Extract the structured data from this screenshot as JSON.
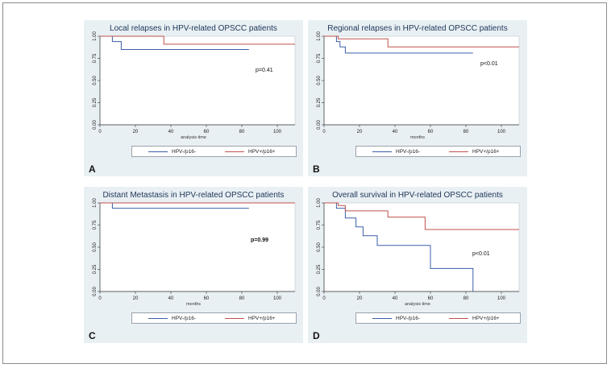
{
  "colors": {
    "hpv_neg": "#3b5fa8",
    "hpv_pos": "#c0504d",
    "panel_bg": "#e9f0f4",
    "plot_bg": "#ffffff"
  },
  "legend": {
    "series1": "HPV-/p16-",
    "series2": "HPV+/p16+"
  },
  "chart_data": [
    {
      "type": "line",
      "step": true,
      "panel_label": "A",
      "title": "Local relapses in HPV-related OPSCC patients",
      "xlabel": "analysis time",
      "ylabel": "",
      "xlim": [
        0,
        110
      ],
      "ylim": [
        0,
        1
      ],
      "xticks": [
        "0",
        "20",
        "40",
        "60",
        "80",
        "100"
      ],
      "yticks": [
        "0.00",
        "0.25",
        "0.50",
        "0.75",
        "1.00"
      ],
      "annotation": "p=0.41",
      "annotation_bold": false,
      "series": [
        {
          "name": "HPV-/p16-",
          "color_key": "hpv_neg",
          "x": [
            0,
            7,
            7,
            12,
            12,
            84
          ],
          "y": [
            1.0,
            1.0,
            0.94,
            0.94,
            0.85,
            0.85
          ]
        },
        {
          "name": "HPV+/p16+",
          "color_key": "hpv_pos",
          "x": [
            0,
            36,
            36,
            110
          ],
          "y": [
            1.0,
            1.0,
            0.91,
            0.91
          ]
        }
      ]
    },
    {
      "type": "line",
      "step": true,
      "panel_label": "B",
      "title": "Regional relapses in HPV-related OPSCC patients",
      "xlabel": "months",
      "ylabel": "",
      "xlim": [
        0,
        110
      ],
      "ylim": [
        0,
        1
      ],
      "xticks": [
        "0",
        "20",
        "40",
        "60",
        "80",
        "100"
      ],
      "yticks": [
        "0.00",
        "0.25",
        "0.50",
        "0.75",
        "1.00"
      ],
      "annotation": "p<0.01",
      "annotation_bold": false,
      "series": [
        {
          "name": "HPV-/p16-",
          "color_key": "hpv_neg",
          "x": [
            0,
            7,
            7,
            9,
            9,
            12,
            12,
            84
          ],
          "y": [
            1.0,
            1.0,
            0.94,
            0.94,
            0.88,
            0.88,
            0.81,
            0.81
          ]
        },
        {
          "name": "HPV+/p16+",
          "color_key": "hpv_pos",
          "x": [
            0,
            8,
            8,
            36,
            36,
            110
          ],
          "y": [
            1.0,
            1.0,
            0.97,
            0.97,
            0.88,
            0.88
          ]
        }
      ]
    },
    {
      "type": "line",
      "step": true,
      "panel_label": "C",
      "title": "Distant Metastasis in HPV-related OPSCC patients",
      "xlabel": "months",
      "ylabel": "",
      "xlim": [
        0,
        110
      ],
      "ylim": [
        0,
        1
      ],
      "xticks": [
        "0",
        "20",
        "40",
        "60",
        "80",
        "100"
      ],
      "yticks": [
        "0.00",
        "0.25",
        "0.50",
        "0.75",
        "1.00"
      ],
      "annotation": "p=0.99",
      "annotation_bold": true,
      "series": [
        {
          "name": "HPV-/p16-",
          "color_key": "hpv_neg",
          "x": [
            0,
            7,
            7,
            84
          ],
          "y": [
            1.0,
            1.0,
            0.94,
            0.94
          ]
        },
        {
          "name": "HPV+/p16+",
          "color_key": "hpv_pos",
          "x": [
            0,
            110
          ],
          "y": [
            1.0,
            1.0
          ]
        }
      ]
    },
    {
      "type": "line",
      "step": true,
      "panel_label": "D",
      "title": "Overall survival in HPV-related OPSCC patients",
      "xlabel": "analysis time",
      "ylabel": "",
      "xlim": [
        0,
        110
      ],
      "ylim": [
        0,
        1
      ],
      "xticks": [
        "0",
        "20",
        "40",
        "60",
        "80",
        "100"
      ],
      "yticks": [
        "0.00",
        "0.25",
        "0.50",
        "0.75",
        "1.00"
      ],
      "annotation": "p<0.01",
      "annotation_bold": false,
      "series": [
        {
          "name": "HPV-/p16-",
          "color_key": "hpv_neg",
          "x": [
            0,
            7,
            7,
            12,
            12,
            18,
            18,
            22,
            22,
            30,
            30,
            60,
            60,
            84,
            84
          ],
          "y": [
            1.0,
            1.0,
            0.94,
            0.94,
            0.83,
            0.83,
            0.73,
            0.73,
            0.63,
            0.63,
            0.52,
            0.52,
            0.26,
            0.26,
            0.0
          ]
        },
        {
          "name": "HPV+/p16+",
          "color_key": "hpv_pos",
          "x": [
            0,
            8,
            8,
            12,
            12,
            36,
            36,
            57,
            57,
            110
          ],
          "y": [
            1.0,
            1.0,
            0.97,
            0.97,
            0.91,
            0.91,
            0.84,
            0.84,
            0.7,
            0.7
          ]
        }
      ]
    }
  ]
}
